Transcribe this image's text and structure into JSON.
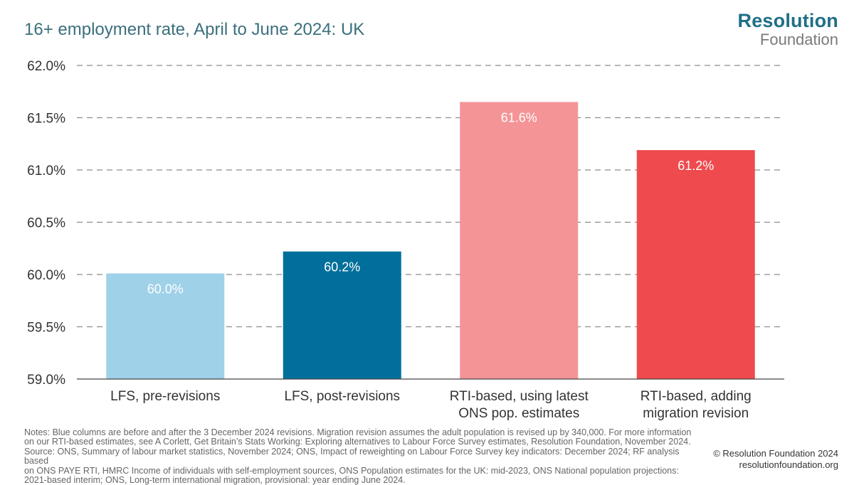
{
  "chart_data": {
    "type": "bar",
    "title": "16+ employment rate, April to June 2024: UK",
    "categories": [
      [
        "LFS, pre-revisions"
      ],
      [
        "LFS, post-revisions"
      ],
      [
        "RTI-based, using latest",
        "ONS pop. estimates"
      ],
      [
        "RTI-based, adding",
        "migration revision"
      ]
    ],
    "values": [
      60.01,
      60.22,
      61.65,
      61.19
    ],
    "data_labels": [
      "60.0%",
      "60.2%",
      "61.6%",
      "61.2%"
    ],
    "colors": [
      "#9fd1e8",
      "#006f9b",
      "#f49496",
      "#ef4a4d"
    ],
    "ylim": [
      59.0,
      62.0
    ],
    "yticks": [
      59.0,
      59.5,
      60.0,
      60.5,
      61.0,
      61.5,
      62.0
    ],
    "ytick_labels": [
      "59.0%",
      "59.5%",
      "60.0%",
      "60.5%",
      "61.0%",
      "61.5%",
      "62.0%"
    ],
    "grid": "dashed-horizontal",
    "xlabel": "",
    "ylabel": ""
  },
  "logo": {
    "line1": "Resolution",
    "line2": "Foundation"
  },
  "notes": [
    "Notes: Blue columns are before and after the 3 December 2024 revisions. Migration revision assumes the adult population is revised up by 340,000. For more information",
    "on our RTI-based estimates, see A Corlett, Get Britain’s Stats Working: Exploring alternatives to Labour Force Survey estimates, Resolution Foundation, November 2024.",
    "Source: ONS, Summary of labour market statistics, November 2024; ONS, Impact of reweighting on Labour Force Survey key indicators: December 2024; RF analysis based",
    "on ONS PAYE RTI, HMRC Income of individuals with self-employment sources, ONS Population estimates for the UK: mid-2023, ONS National population projections:",
    "2021-based interim; ONS, Long-term international migration, provisional: year ending June 2024."
  ],
  "credit": {
    "line1": "© Resolution Foundation 2024",
    "line2": "resolutionfoundation.org"
  }
}
